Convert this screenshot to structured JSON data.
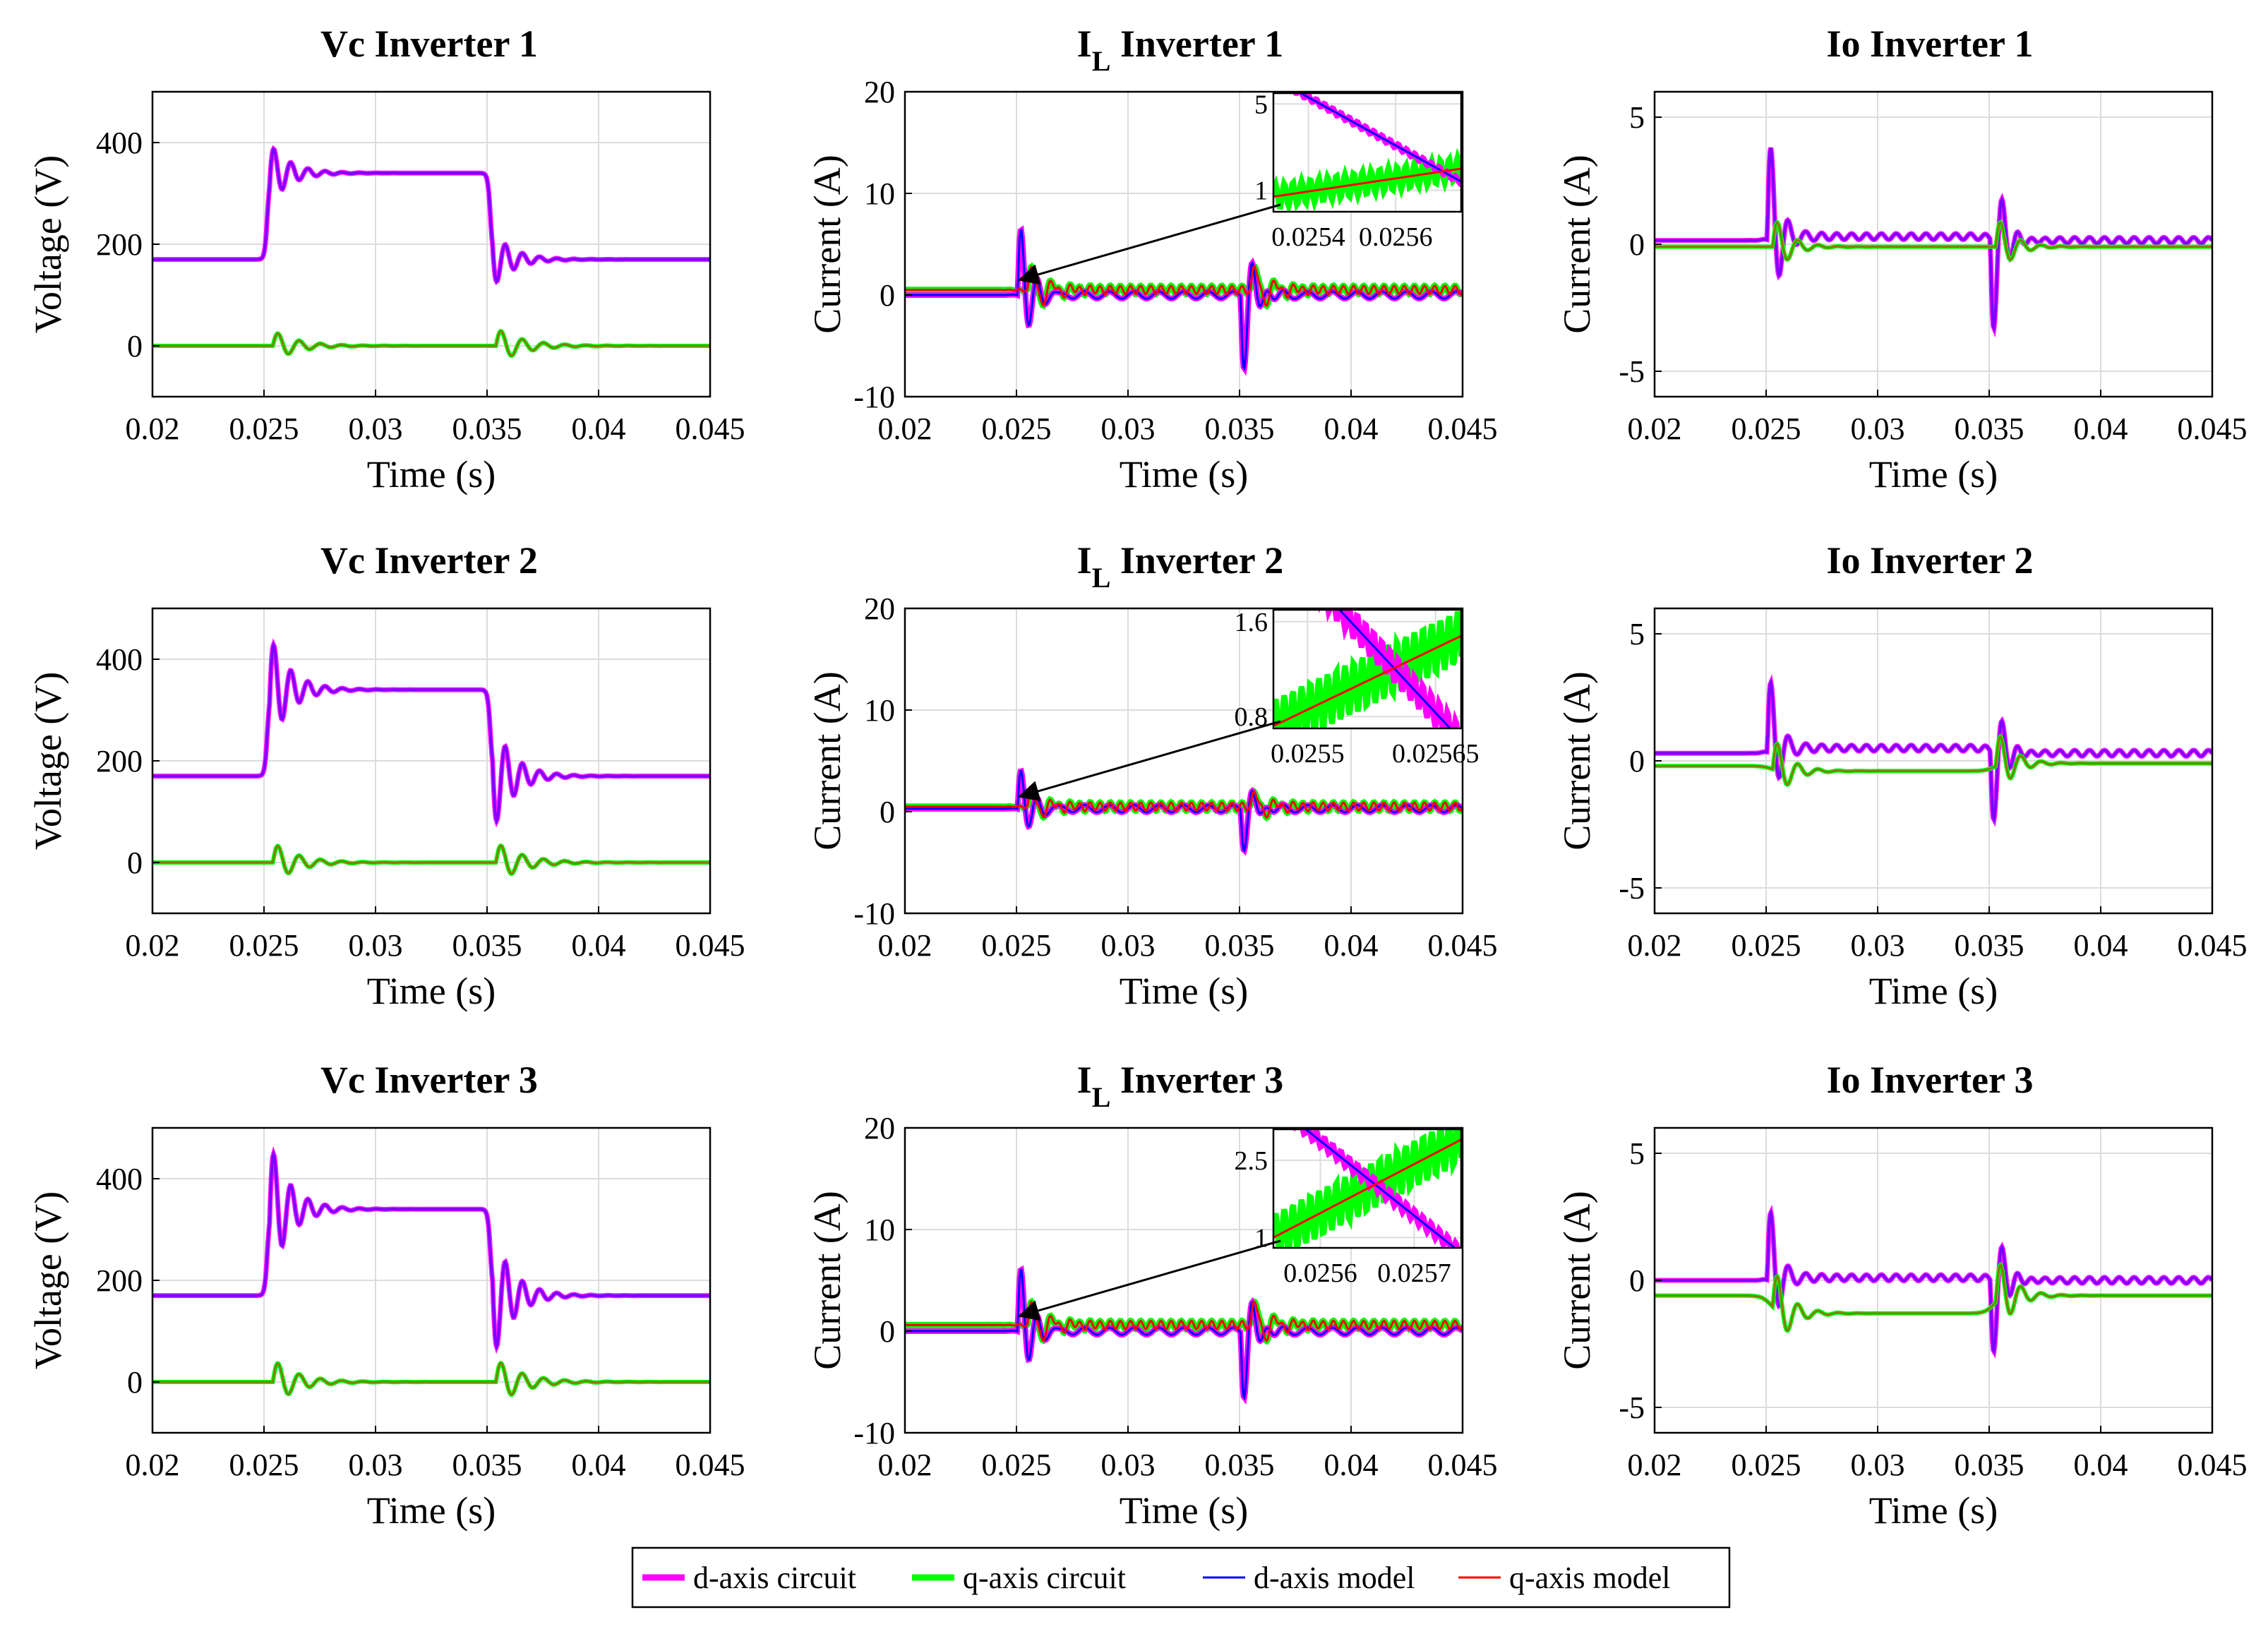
{
  "chart_data": {
    "type": "line",
    "legend": {
      "position": "bottom",
      "entries": [
        {
          "label": "d-axis circuit",
          "color": "#ff00ff"
        },
        {
          "label": "q-axis circuit",
          "color": "#00ff00"
        },
        {
          "label": "d-axis model",
          "color": "#0000ff"
        },
        {
          "label": "q-axis model",
          "color": "#ff0000"
        }
      ]
    },
    "colors": {
      "d_circuit": "#ff00ff",
      "q_circuit": "#00ff00",
      "d_model": "#0000ff",
      "q_model": "#ff0000",
      "purple": "#7f00ff",
      "olive": "#7f7f00"
    },
    "x_axis": {
      "label": "Time (s)",
      "range": [
        0.02,
        0.045
      ],
      "ticks": [
        0.02,
        0.025,
        0.03,
        0.035,
        0.04,
        0.045
      ],
      "tick_labels": [
        "0.02",
        "0.025",
        "0.03",
        "0.035",
        "0.04",
        "0.045"
      ]
    },
    "panels": [
      {
        "id": "vc1",
        "title": "Vc Inverter 1",
        "ylabel": "Voltage (V)",
        "ylim": [
          -100,
          500
        ],
        "yticks": [
          0,
          200,
          400
        ],
        "ytick_labels": [
          "0",
          "200",
          "400"
        ],
        "kind": "vc",
        "d": {
          "pre": 170,
          "step": 340,
          "post": 170,
          "amp1": 60,
          "amp2": 55
        },
        "q": {
          "amp1": 30,
          "amp2": 35
        }
      },
      {
        "id": "il1",
        "title": "I",
        "title_sub": "L",
        "title_rest": " Inverter 1",
        "ylabel": "Current (A)",
        "ylim": [
          -10,
          20
        ],
        "yticks": [
          -10,
          0,
          10,
          20
        ],
        "ytick_labels": [
          "-10",
          "0",
          "10",
          "20"
        ],
        "kind": "il",
        "d": {
          "base": 0,
          "amp1": 9.5,
          "amp2": 10
        },
        "q": {
          "base": 0.5,
          "amp1": 3,
          "amp2": 3
        },
        "inset": {
          "xlim": [
            0.02532,
            0.02575
          ],
          "ylim": [
            0,
            5.5
          ],
          "xticks": [
            0.0254,
            0.0256
          ],
          "xtick_labels": [
            "0.0254",
            "0.0256"
          ],
          "yticks": [
            1,
            5
          ],
          "ytick_labels": [
            "1",
            "5"
          ],
          "d_from": 6.2,
          "d_to": 1.4,
          "q_from": 0.7,
          "q_to": 2.0,
          "q_ripple": 0.55
        }
      },
      {
        "id": "io1",
        "title": "Io Inverter 1",
        "ylabel": "Current (A)",
        "ylim": [
          -6,
          6
        ],
        "yticks": [
          -5,
          0,
          5
        ],
        "ytick_labels": [
          "-5",
          "0",
          "5"
        ],
        "kind": "io",
        "d": {
          "pre": 0.15,
          "mid": 0.3,
          "post": 0.15,
          "amp1": 5.3,
          "amp2": 5
        },
        "q": {
          "pre": -0.1,
          "mid": -0.1,
          "post": -0.1,
          "amp1": 1.3,
          "amp2": 1.3
        }
      },
      {
        "id": "vc2",
        "title": "Vc Inverter 2",
        "ylabel": "Voltage (V)",
        "ylim": [
          -100,
          500
        ],
        "yticks": [
          0,
          200,
          400
        ],
        "ytick_labels": [
          "0",
          "200",
          "400"
        ],
        "kind": "vc",
        "d": {
          "pre": 170,
          "step": 340,
          "post": 170,
          "amp1": 110,
          "amp2": 110
        },
        "q": {
          "amp1": 40,
          "amp2": 40
        }
      },
      {
        "id": "il2",
        "title": "I",
        "title_sub": "L",
        "title_rest": " Inverter 2",
        "ylabel": "Current (A)",
        "ylim": [
          -10,
          20
        ],
        "yticks": [
          -10,
          0,
          10,
          20
        ],
        "ytick_labels": [
          "-10",
          "0",
          "10",
          "20"
        ],
        "kind": "il",
        "d": {
          "base": 0.3,
          "amp1": 5.6,
          "amp2": 5.5
        },
        "q": {
          "base": 0.5,
          "amp1": 1.8,
          "amp2": 1.8
        },
        "inset": {
          "xlim": [
            0.02546,
            0.02568
          ],
          "ylim": [
            0.7,
            1.7
          ],
          "xticks": [
            0.0255,
            0.02565
          ],
          "xtick_labels": [
            "0.0255",
            "0.02565"
          ],
          "yticks": [
            0.8,
            1.6
          ],
          "ytick_labels": [
            "0.8",
            "1.6"
          ],
          "d_from": 2.3,
          "d_to": 0.6,
          "q_from": 0.72,
          "q_to": 1.48,
          "q_ripple": 0.22
        }
      },
      {
        "id": "io2",
        "title": "Io Inverter 2",
        "ylabel": "Current (A)",
        "ylim": [
          -6,
          6
        ],
        "yticks": [
          -5,
          0,
          5
        ],
        "ytick_labels": [
          "-5",
          "0",
          "5"
        ],
        "kind": "io",
        "d": {
          "pre": 0.3,
          "mid": 0.5,
          "post": 0.3,
          "amp1": 4,
          "amp2": 3.8
        },
        "q": {
          "pre": -0.2,
          "mid": -0.4,
          "post": -0.1,
          "amp1": 1.4,
          "amp2": 1.5
        }
      },
      {
        "id": "vc3",
        "title": "Vc Inverter 3",
        "ylabel": "Voltage (V)",
        "ylim": [
          -100,
          500
        ],
        "yticks": [
          0,
          200,
          400
        ],
        "ytick_labels": [
          "0",
          "200",
          "400"
        ],
        "kind": "vc",
        "d": {
          "pre": 170,
          "step": 340,
          "post": 170,
          "amp1": 135,
          "amp2": 125
        },
        "q": {
          "amp1": 45,
          "amp2": 45
        }
      },
      {
        "id": "il3",
        "title": "I",
        "title_sub": "L",
        "title_rest": " Inverter 3",
        "ylabel": "Current (A)",
        "ylim": [
          -10,
          20
        ],
        "yticks": [
          -10,
          0,
          10,
          20
        ],
        "ytick_labels": [
          "-10",
          "0",
          "10",
          "20"
        ],
        "kind": "il",
        "d": {
          "base": 0,
          "amp1": 9,
          "amp2": 9
        },
        "q": {
          "base": 0.6,
          "amp1": 3,
          "amp2": 3
        },
        "inset": {
          "xlim": [
            0.02555,
            0.02575
          ],
          "ylim": [
            0.8,
            3.1
          ],
          "xticks": [
            0.0256,
            0.0257
          ],
          "xtick_labels": [
            "0.0256",
            "0.0257"
          ],
          "yticks": [
            1,
            2.5
          ],
          "ytick_labels": [
            "1",
            "2.5"
          ],
          "d_from": 3.6,
          "d_to": 0.7,
          "q_from": 1.0,
          "q_to": 2.9,
          "q_ripple": 0.45
        }
      },
      {
        "id": "io3",
        "title": "Io Inverter 3",
        "ylabel": "Current (A)",
        "ylim": [
          -6,
          6
        ],
        "yticks": [
          -5,
          0,
          5
        ],
        "ytick_labels": [
          "-5",
          "0",
          "5"
        ],
        "kind": "io",
        "d": {
          "pre": 0,
          "mid": 0.1,
          "post": 0,
          "amp1": 3.9,
          "amp2": 4
        },
        "q": {
          "pre": -0.6,
          "mid": -1.3,
          "post": -0.6,
          "amp1": 1.8,
          "amp2": 1.8
        }
      }
    ]
  }
}
